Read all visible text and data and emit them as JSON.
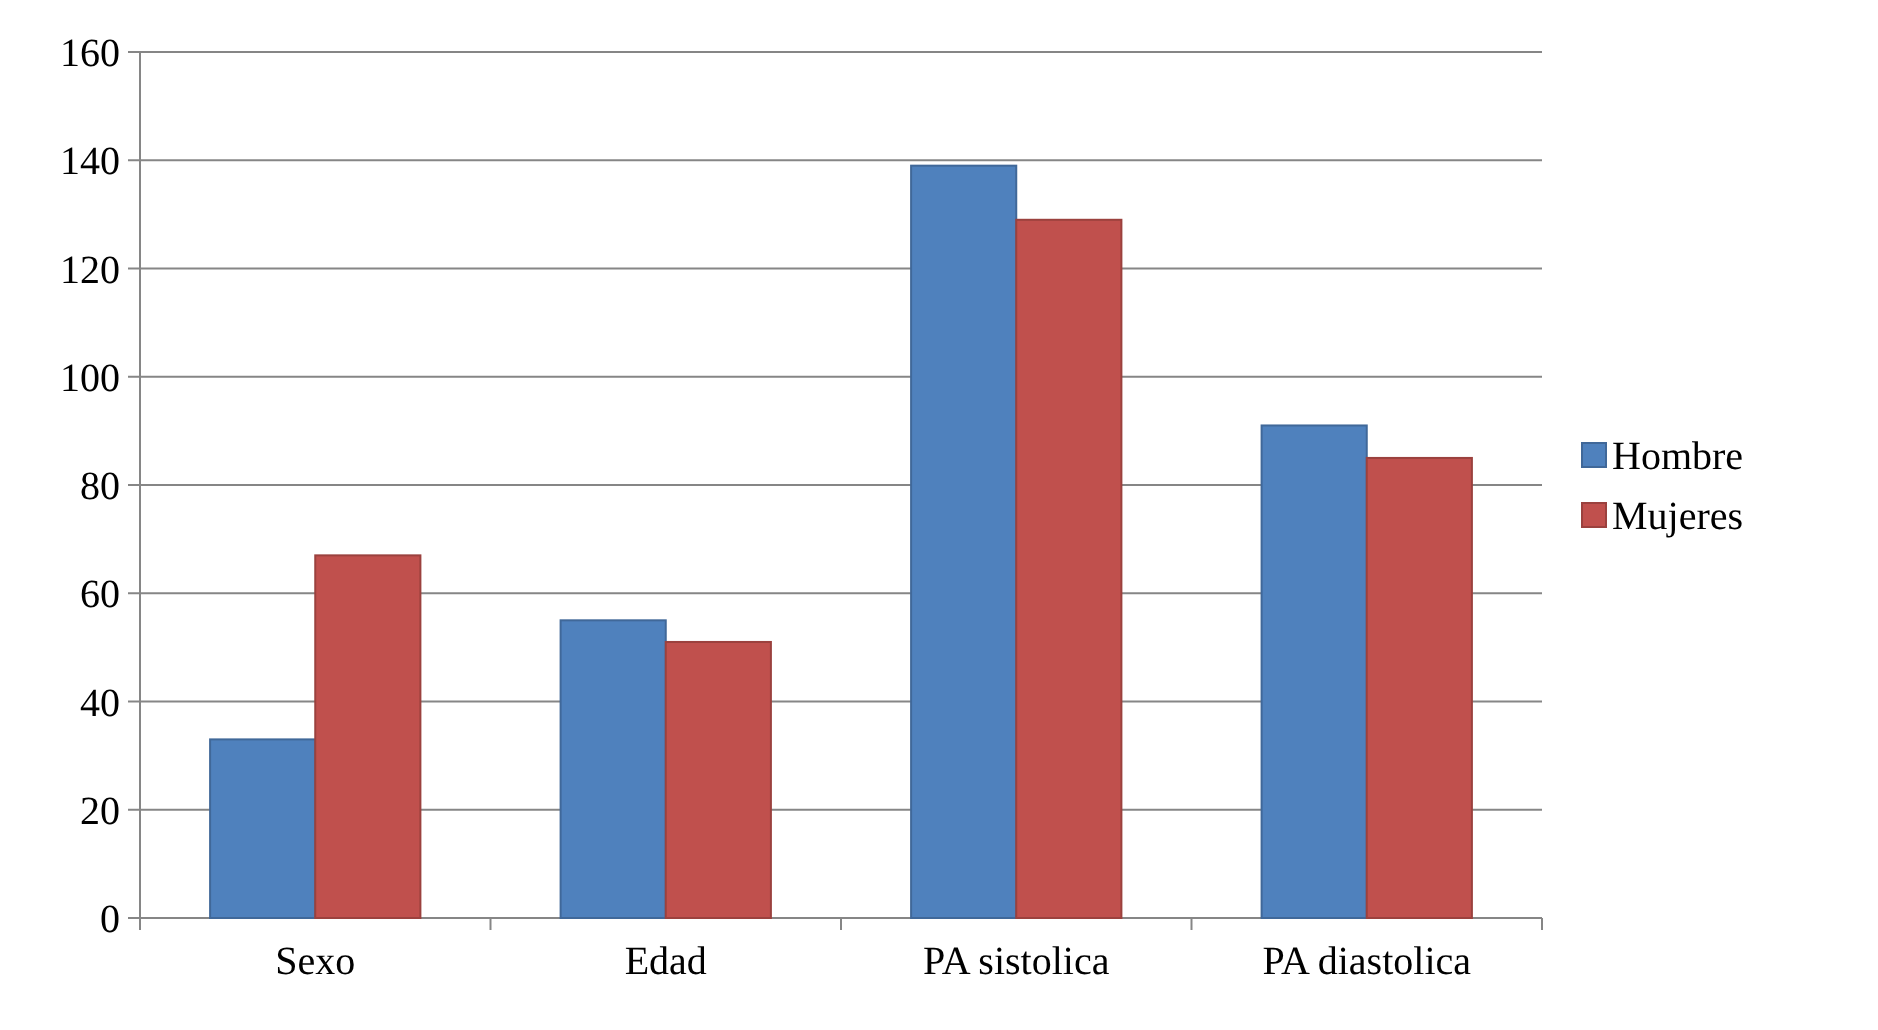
{
  "chart_data": {
    "type": "bar",
    "categories": [
      "Sexo",
      "Edad",
      "PA sistolica",
      "PA diastolica"
    ],
    "series": [
      {
        "name": "Hombre",
        "color": "#4f81bd",
        "values": [
          33,
          55,
          139,
          91
        ]
      },
      {
        "name": "Mujeres",
        "color": "#c0504d",
        "values": [
          67,
          51,
          129,
          85
        ]
      }
    ],
    "ylim": [
      0,
      160
    ],
    "yticks": [
      0,
      20,
      40,
      60,
      80,
      100,
      120,
      140,
      160
    ],
    "grid": "y",
    "legend": "right"
  }
}
